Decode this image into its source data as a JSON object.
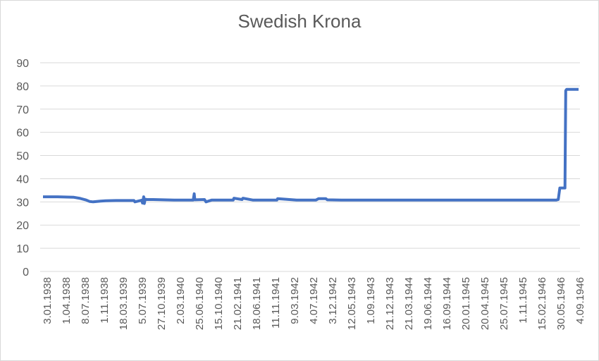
{
  "chart_data": {
    "type": "line",
    "title": "Swedish Krona",
    "xlabel": "",
    "ylabel": "",
    "ylim": [
      0,
      90
    ],
    "yticks": [
      0,
      10,
      20,
      30,
      40,
      50,
      60,
      70,
      80,
      90
    ],
    "grid": true,
    "legend": "none",
    "x_tick_labels": [
      "3.01.1938",
      "1.04.1938",
      "8.07.1938",
      "1.11.1938",
      "18.03.1939",
      "5.07.1939",
      "27.10.1939",
      "2.03.1940",
      "25.06.1940",
      "15.10.1940",
      "21.02.1941",
      "18.06.1941",
      "11.11.1941",
      "9.03.1942",
      "4.07.1942",
      "3.12.1942",
      "12.05.1943",
      "1.09.1943",
      "21.12.1943",
      "21.03.1944",
      "19.06.1944",
      "16.09.1944",
      "20.01.1945",
      "20.04.1945",
      "25.07.1945",
      "1.11.1945",
      "15.02.1946",
      "30.05.1946",
      "4.09.1946"
    ],
    "series": [
      {
        "color": "#4472c4",
        "x": [
          "3.01.1938",
          "1.04.1938",
          "8.07.1938",
          "15.08.1938",
          "20.09.1938",
          "10.10.1938",
          "1.11.1938",
          "15.12.1938",
          "15.01.1939",
          "18.03.1939",
          "1.05.1939",
          "5.07.1939",
          "10.07.1939",
          "20.08.1939",
          "25.08.1939",
          "1.09.1939",
          "5.09.1939",
          "10.09.1939",
          "20.09.1939",
          "27.10.1939",
          "2.03.1940",
          "25.06.1940",
          "1.07.1940",
          "5.07.1940",
          "1.09.1940",
          "10.09.1940",
          "15.10.1940",
          "21.02.1941",
          "25.02.1941",
          "15.04.1941",
          "20.04.1941",
          "18.06.1941",
          "11.11.1941",
          "15.11.1941",
          "9.03.1942",
          "4.07.1942",
          "20.07.1942",
          "1.09.1942",
          "10.09.1942",
          "3.12.1942",
          "12.05.1943",
          "1.09.1943",
          "21.12.1943",
          "21.03.1944",
          "19.06.1944",
          "16.09.1944",
          "20.01.1945",
          "20.04.1945",
          "25.07.1945",
          "1.11.1945",
          "15.02.1946",
          "30.05.1946",
          "20.06.1946",
          "1.07.1946",
          "10.07.1946",
          "10.08.1946",
          "15.08.1946",
          "20.08.1946",
          "31.10.1946"
        ],
        "values": [
          32.2,
          32.2,
          32.0,
          31.5,
          30.8,
          30.2,
          30.0,
          30.3,
          30.5,
          30.6,
          30.6,
          30.6,
          30.0,
          30.7,
          29.5,
          32.2,
          29.3,
          31.2,
          31.0,
          31.0,
          30.8,
          30.8,
          33.5,
          30.9,
          31.0,
          30.0,
          30.8,
          30.8,
          31.6,
          31.0,
          31.6,
          30.8,
          30.8,
          31.4,
          30.8,
          30.8,
          31.4,
          31.4,
          30.9,
          30.8,
          30.8,
          30.8,
          30.8,
          30.8,
          30.8,
          30.8,
          30.8,
          30.8,
          30.8,
          30.8,
          30.8,
          30.8,
          30.8,
          31.0,
          36.0,
          36.0,
          78.0,
          78.5,
          78.5
        ]
      }
    ]
  }
}
